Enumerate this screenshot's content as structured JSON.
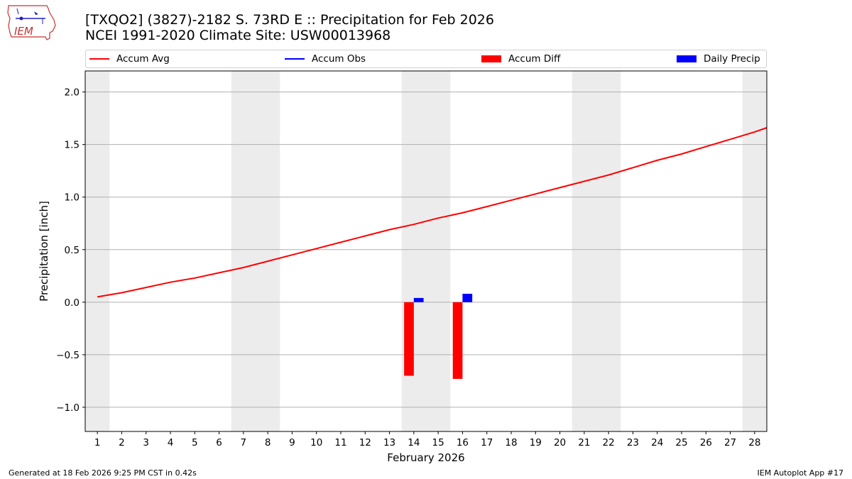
{
  "header": {
    "title_line1": "[TXQO2] (3827)-2182 S. 73RD E :: Precipitation for Feb 2026",
    "title_line2": "NCEI 1991-2020 Climate Site: USW00013968",
    "logo_text": "IEM"
  },
  "legend": [
    {
      "label": "Accum Avg",
      "kind": "line",
      "color": "#ff0000"
    },
    {
      "label": "Accum Obs",
      "kind": "line",
      "color": "#0000ff"
    },
    {
      "label": "Accum Diff",
      "kind": "box",
      "color": "#ff0000"
    },
    {
      "label": "Daily Precip",
      "kind": "box",
      "color": "#0000ff"
    }
  ],
  "footer": {
    "left": "Generated at 18 Feb 2026 9:25 PM CST in 0.42s",
    "right": "IEM Autoplot App #17"
  },
  "colors": {
    "avg": "#ff0000",
    "diff": "#ff0000",
    "daily": "#0000ff",
    "weekend_band": "#ececec",
    "grid": "#b0b0b0"
  },
  "chart_data": {
    "type": "line",
    "xlabel": "February 2026",
    "ylabel": "Precipitation [inch]",
    "xlim": [
      0.5,
      28.5
    ],
    "ylim": [
      -1.23,
      2.2
    ],
    "x_ticks": [
      1,
      2,
      3,
      4,
      5,
      6,
      7,
      8,
      9,
      10,
      11,
      12,
      13,
      14,
      15,
      16,
      17,
      18,
      19,
      20,
      21,
      22,
      23,
      24,
      25,
      26,
      27,
      28
    ],
    "y_ticks": [
      -1.0,
      -0.5,
      0.0,
      0.5,
      1.0,
      1.5,
      2.0
    ],
    "y_tick_labels": [
      "−1.0",
      "−0.5",
      "0.0",
      "0.5",
      "1.0",
      "1.5",
      "2.0"
    ],
    "grid": "horizontal",
    "weekend_bands": [
      [
        0.5,
        1.5
      ],
      [
        6.5,
        8.5
      ],
      [
        13.5,
        15.5
      ],
      [
        20.5,
        22.5
      ],
      [
        27.5,
        28.5
      ]
    ],
    "accum_avg": {
      "x": [
        1,
        2,
        3,
        4,
        5,
        6,
        7,
        8,
        9,
        10,
        11,
        12,
        13,
        14,
        15,
        16,
        17,
        18,
        19,
        20,
        21,
        22,
        23,
        24,
        25,
        26,
        27,
        28,
        28.5
      ],
      "y": [
        0.05,
        0.09,
        0.14,
        0.19,
        0.23,
        0.28,
        0.33,
        0.39,
        0.45,
        0.51,
        0.57,
        0.63,
        0.69,
        0.74,
        0.8,
        0.85,
        0.91,
        0.97,
        1.03,
        1.09,
        1.15,
        1.21,
        1.28,
        1.35,
        1.41,
        1.48,
        1.55,
        1.62,
        1.66
      ]
    },
    "accum_diff": {
      "x": [
        14,
        16
      ],
      "y": [
        -0.7,
        -0.73
      ]
    },
    "daily_precip": {
      "x": [
        14,
        16
      ],
      "y": [
        0.04,
        0.08
      ]
    }
  }
}
